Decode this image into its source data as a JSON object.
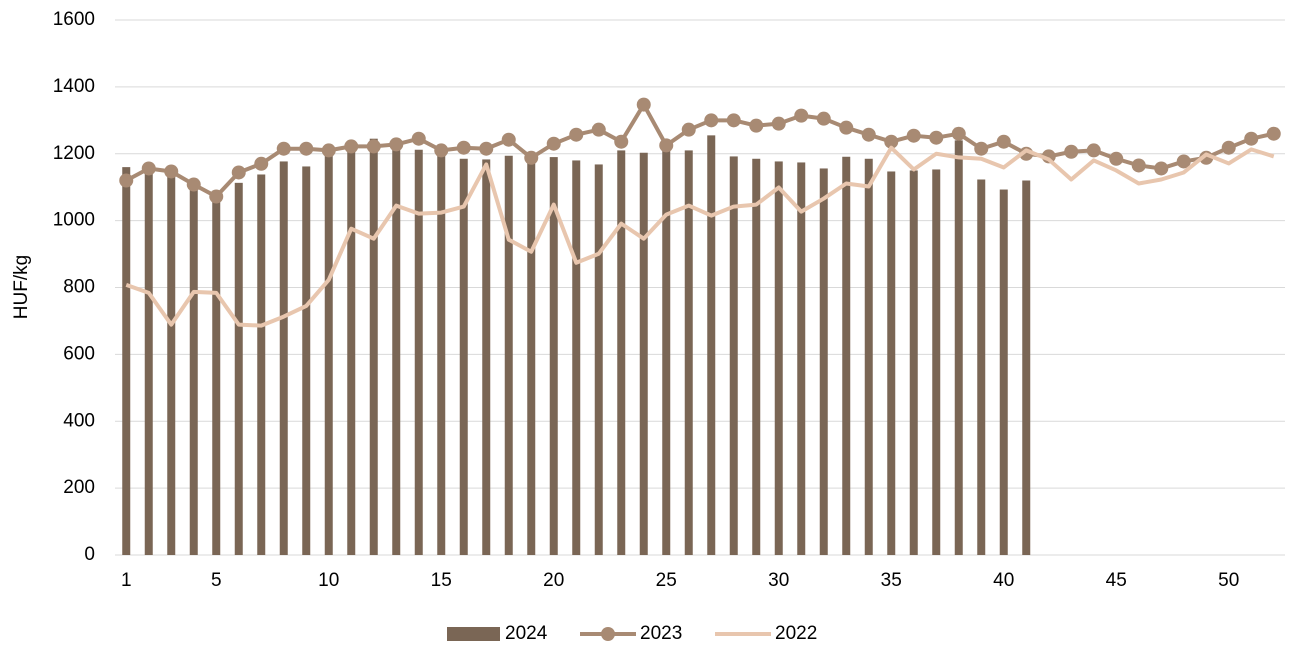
{
  "chart_data": {
    "type": "combo",
    "y_label": "HUF/kg",
    "x": [
      1,
      2,
      3,
      4,
      5,
      6,
      7,
      8,
      9,
      10,
      11,
      12,
      13,
      14,
      15,
      16,
      17,
      18,
      19,
      20,
      21,
      22,
      23,
      24,
      25,
      26,
      27,
      28,
      29,
      30,
      31,
      32,
      33,
      34,
      35,
      36,
      37,
      38,
      39,
      40,
      41,
      42,
      43,
      44,
      45,
      46,
      47,
      48,
      49,
      50,
      51,
      52
    ],
    "xlim": [
      0.5,
      52.5
    ],
    "xticks": [
      1,
      5,
      10,
      15,
      20,
      25,
      30,
      35,
      40,
      45,
      50
    ],
    "ylim": [
      0,
      1600
    ],
    "yticks": [
      0,
      200,
      400,
      600,
      800,
      1000,
      1200,
      1400,
      1600
    ],
    "grid": true,
    "legend": "bottom",
    "series": [
      {
        "name": "2024",
        "type": "bar",
        "color": "#7a6655",
        "values": [
          1160,
          1165,
          1150,
          1100,
          1060,
          1113,
          1138,
          1177,
          1162,
          1200,
          1210,
          1245,
          1220,
          1212,
          1200,
          1185,
          1183,
          1194,
          1190,
          1190,
          1180,
          1168,
          1210,
          1203,
          1210,
          1210,
          1255,
          1192,
          1185,
          1177,
          1174,
          1156,
          1191,
          1185,
          1147,
          1150,
          1153,
          1240,
          1123,
          1093,
          1120,
          null,
          null,
          null,
          null,
          null,
          null,
          null,
          null,
          null,
          null,
          null
        ]
      },
      {
        "name": "2023",
        "type": "line",
        "markers": true,
        "color": "#a88a73",
        "values": [
          1120,
          1156,
          1147,
          1108,
          1072,
          1144,
          1170,
          1215,
          1215,
          1210,
          1222,
          1222,
          1228,
          1245,
          1210,
          1218,
          1215,
          1242,
          1188,
          1230,
          1257,
          1272,
          1236,
          1347,
          1225,
          1272,
          1300,
          1300,
          1284,
          1290,
          1314,
          1305,
          1278,
          1257,
          1236,
          1254,
          1248,
          1260,
          1215,
          1236,
          1200,
          1192,
          1206,
          1210,
          1185,
          1165,
          1156,
          1177,
          1188,
          1218,
          1245,
          1260
        ]
      },
      {
        "name": "2022",
        "type": "line",
        "markers": false,
        "color": "#e8c6ae",
        "values": [
          808,
          784,
          689,
          787,
          784,
          689,
          686,
          713,
          745,
          823,
          976,
          946,
          1045,
          1021,
          1024,
          1042,
          1168,
          943,
          907,
          1048,
          874,
          901,
          991,
          946,
          1018,
          1045,
          1015,
          1042,
          1048,
          1099,
          1027,
          1066,
          1111,
          1102,
          1218,
          1153,
          1200,
          1189,
          1185,
          1159,
          1210,
          1183,
          1123,
          1180,
          1150,
          1111,
          1123,
          1144,
          1198,
          1171,
          1213,
          1192
        ]
      }
    ]
  }
}
